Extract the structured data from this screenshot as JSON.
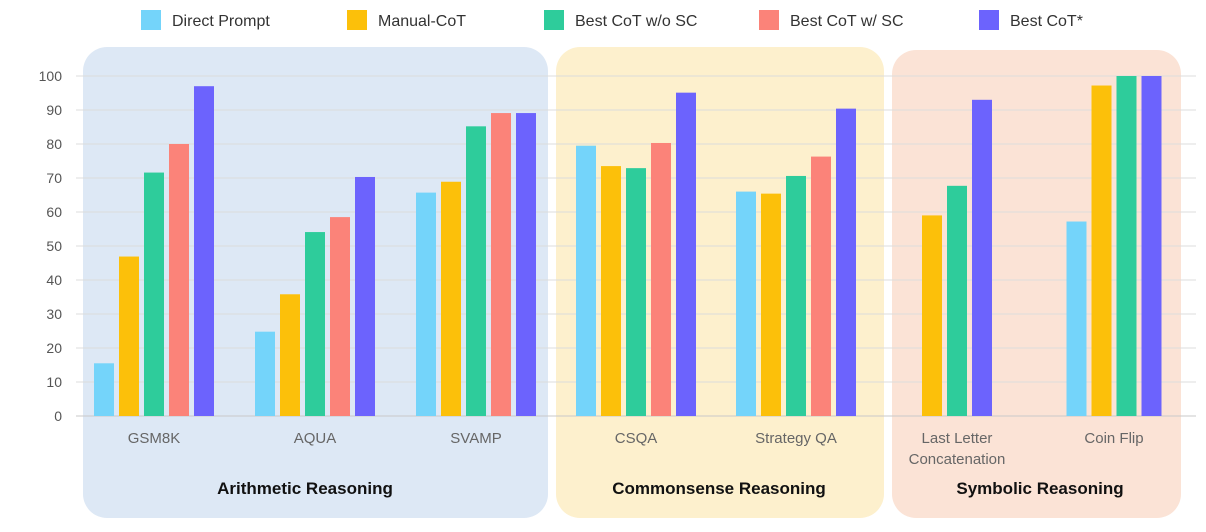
{
  "chart_data": {
    "type": "bar",
    "title": "",
    "xlabel": "",
    "ylabel": "",
    "ylim": [
      0,
      100
    ],
    "yticks": [
      0,
      10,
      20,
      30,
      40,
      50,
      60,
      70,
      80,
      90,
      100
    ],
    "grid": true,
    "legend_position": "top",
    "groups": [
      {
        "label": "Arithmetic Reasoning",
        "color": "#dde8f5",
        "categories": [
          "GSM8K",
          "AQUA",
          "SVAMP"
        ]
      },
      {
        "label": "Commonsense Reasoning",
        "color": "#fdf0cd",
        "categories": [
          "CSQA",
          "Strategy QA"
        ]
      },
      {
        "label": "Symbolic Reasoning",
        "color": "#fbe3d6",
        "categories": [
          "Last Letter Concatenation",
          "Coin Flip"
        ]
      }
    ],
    "categories": [
      "GSM8K",
      "AQUA",
      "SVAMP",
      "CSQA",
      "Strategy QA",
      "Last Letter Concatenation",
      "Coin Flip"
    ],
    "category_labels": [
      [
        "GSM8K"
      ],
      [
        "AQUA"
      ],
      [
        "SVAMP"
      ],
      [
        "CSQA"
      ],
      [
        "Strategy QA"
      ],
      [
        "Last Letter",
        "Concatenation"
      ],
      [
        "Coin Flip"
      ]
    ],
    "series": [
      {
        "name": "Direct Prompt",
        "color": "#74d4fa",
        "values": [
          15.5,
          24.8,
          65.7,
          79.5,
          66,
          null,
          57.2
        ]
      },
      {
        "name": "Manual-CoT",
        "color": "#fcc00a",
        "values": [
          46.9,
          35.8,
          68.9,
          73.5,
          65.4,
          59,
          97.2
        ]
      },
      {
        "name": "Best CoT w/o SC",
        "color": "#2ecc9b",
        "values": [
          71.6,
          54.1,
          85.2,
          72.9,
          70.6,
          67.7,
          100
        ]
      },
      {
        "name": "Best CoT w/ SC",
        "color": "#fb8379",
        "values": [
          80,
          58.5,
          89.1,
          80.3,
          76.3,
          null,
          null
        ]
      },
      {
        "name": "Best CoT*",
        "color": "#6c63fd",
        "values": [
          97,
          70.3,
          89.1,
          95.1,
          90.4,
          93,
          100
        ]
      }
    ]
  }
}
